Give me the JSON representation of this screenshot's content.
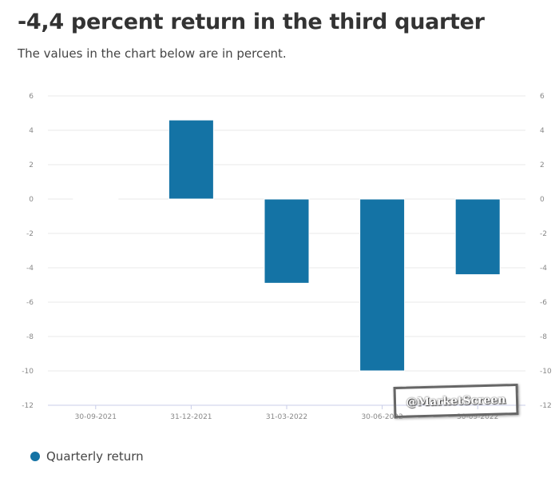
{
  "title": "-4,4 percent return in the third quarter",
  "subtitle": "The values in the chart below are in percent.",
  "watermark": "@MarketScreen",
  "chart_data": {
    "type": "bar",
    "categories": [
      "30-09-2021",
      "31-12-2021",
      "31-03-2022",
      "30-06-2022",
      "30-09-2022"
    ],
    "series": [
      {
        "name": "Quarterly return",
        "color": "#1473a5",
        "values": [
          0,
          4.6,
          -4.9,
          -10.0,
          -4.4
        ]
      }
    ],
    "ylim": [
      -12,
      6
    ],
    "yticks": [
      6,
      4,
      2,
      0,
      -2,
      -4,
      -6,
      -8,
      -10,
      -12
    ],
    "grid": true,
    "legend": "bottom-left",
    "xlabel": "",
    "ylabel": ""
  }
}
